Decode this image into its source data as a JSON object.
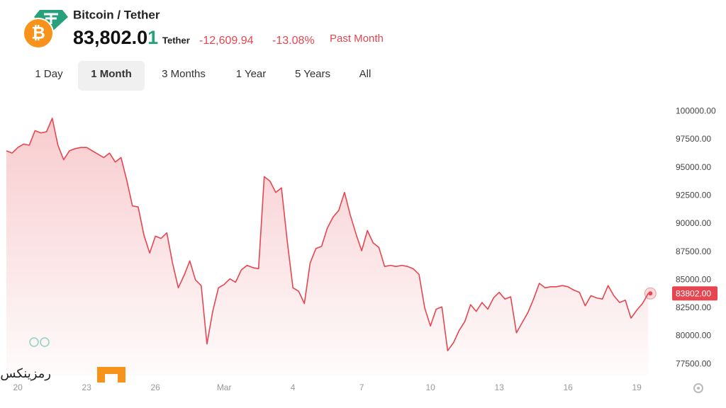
{
  "header": {
    "title": "Bitcoin / Tether",
    "coin_symbol": "₿",
    "price_digits": "83,802.0",
    "price_last_digit": "1",
    "quote_unit": "Tether",
    "change": "-12,609.94",
    "change_percent": "-13.08%",
    "period": "Past Month"
  },
  "tabs": {
    "items": [
      "1 Day",
      "1 Month",
      "3 Months",
      "1 Year",
      "5 Years",
      "All"
    ],
    "active": 1
  },
  "watermark": "رمزینکس",
  "chart_data": {
    "type": "line",
    "color": "#e5464f",
    "area_fill": true,
    "categories": [
      null,
      null,
      "20",
      null,
      null,
      null,
      null,
      null,
      null,
      null,
      null,
      null,
      null,
      null,
      "23",
      null,
      null,
      null,
      null,
      null,
      null,
      null,
      null,
      null,
      null,
      null,
      "26",
      null,
      null,
      null,
      null,
      null,
      null,
      null,
      null,
      null,
      null,
      null,
      "Mar",
      null,
      null,
      null,
      null,
      null,
      null,
      null,
      null,
      null,
      null,
      null,
      "4",
      null,
      null,
      null,
      null,
      null,
      null,
      null,
      null,
      null,
      null,
      null,
      "7",
      null,
      null,
      null,
      null,
      null,
      null,
      null,
      null,
      null,
      null,
      null,
      "10",
      null,
      null,
      null,
      null,
      null,
      null,
      null,
      null,
      null,
      null,
      null,
      "13",
      null,
      null,
      null,
      null,
      null,
      null,
      null,
      null,
      null,
      null,
      null,
      "16",
      null,
      null,
      null,
      null,
      null,
      null,
      null,
      null,
      null,
      null,
      null,
      "19",
      null,
      null
    ],
    "values": [
      96500,
      96300,
      96800,
      97100,
      97000,
      98300,
      98100,
      98200,
      99400,
      97000,
      95700,
      96500,
      96700,
      96800,
      96800,
      96500,
      96200,
      95900,
      96300,
      95500,
      95900,
      93900,
      91600,
      91500,
      89000,
      87400,
      88900,
      88700,
      89200,
      86500,
      84300,
      85400,
      86700,
      85000,
      84500,
      79300,
      82200,
      84300,
      84600,
      85100,
      84800,
      85900,
      86300,
      86100,
      86000,
      94200,
      93800,
      92800,
      93200,
      88500,
      84300,
      84000,
      82900,
      86500,
      87800,
      88000,
      89600,
      90600,
      91200,
      92800,
      90800,
      89100,
      87600,
      89400,
      88300,
      87900,
      86200,
      86300,
      86200,
      86300,
      86200,
      86000,
      85500,
      82500,
      80900,
      82400,
      82600,
      78700,
      79400,
      80500,
      81300,
      82800,
      82200,
      83000,
      82400,
      83400,
      83900,
      83300,
      83500,
      80300,
      81200,
      82100,
      83300,
      84700,
      84300,
      84400,
      84400,
      84500,
      84400,
      84100,
      83900,
      82700,
      83600,
      83400,
      83300,
      84500,
      83600,
      83000,
      83200,
      81600,
      82300,
      82900,
      83802
    ],
    "ylim": [
      76500,
      101100
    ],
    "yticks": [
      {
        "value": 77500,
        "label": "77500.00"
      },
      {
        "value": 80000,
        "label": "80000.00"
      },
      {
        "value": 82500,
        "label": "82500.00"
      },
      {
        "value": 85000,
        "label": "85000.00"
      },
      {
        "value": 87500,
        "label": "87500.00"
      },
      {
        "value": 90000,
        "label": "90000.00"
      },
      {
        "value": 92500,
        "label": "92500.00"
      },
      {
        "value": 95000,
        "label": "95000.00"
      },
      {
        "value": 97500,
        "label": "97500.00"
      },
      {
        "value": 100000,
        "label": "100000.00"
      }
    ],
    "last_price_tag": {
      "value": 83802,
      "label": "83802.00"
    }
  }
}
